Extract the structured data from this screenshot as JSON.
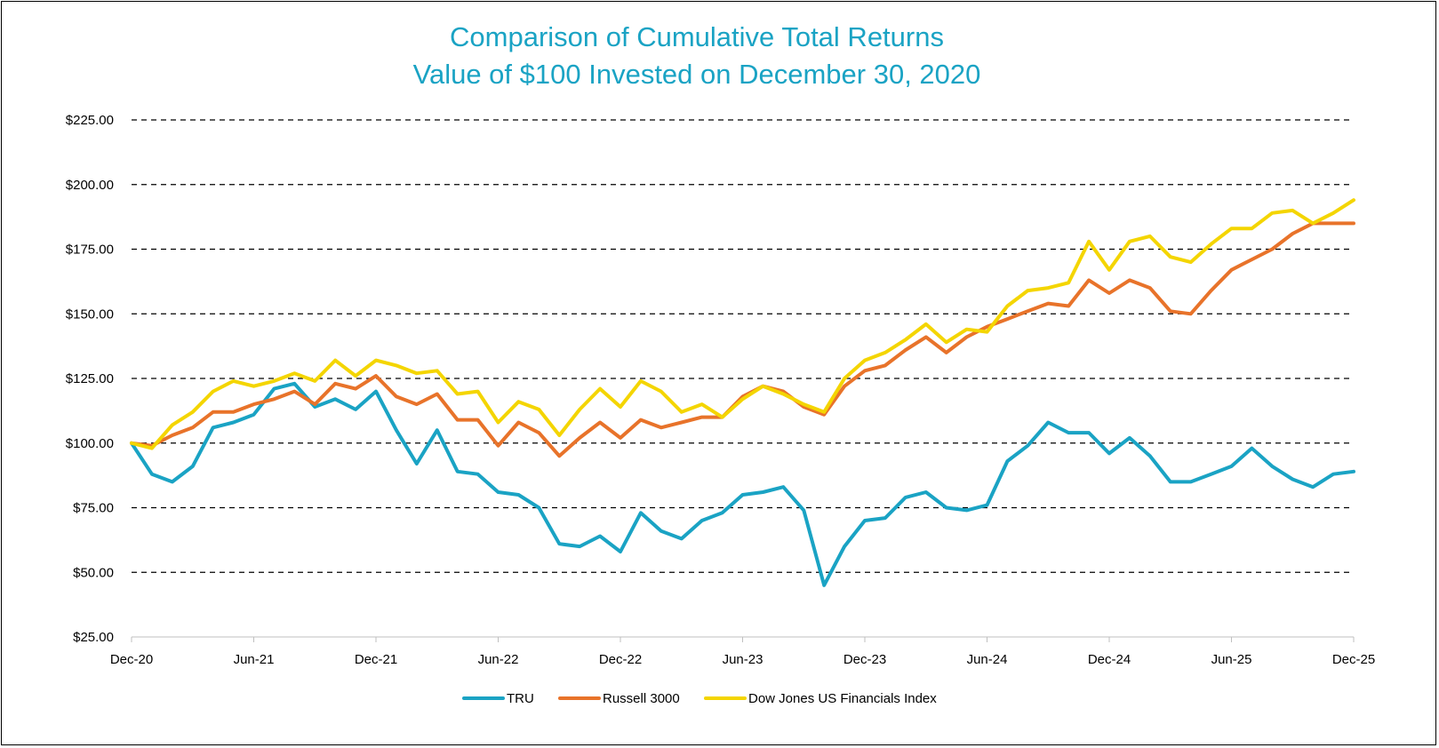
{
  "chart_data": {
    "type": "line",
    "title": "Comparison of Cumulative Total Returns",
    "subtitle": "Value of $100 Invested on December 30, 2020",
    "xlabel": "",
    "ylabel": "",
    "ylim": [
      25,
      225
    ],
    "yticks": [
      25,
      50,
      75,
      100,
      125,
      150,
      175,
      200,
      225
    ],
    "ytick_labels": [
      "$25.00",
      "$50.00",
      "$75.00",
      "$100.00",
      "$125.00",
      "$150.00",
      "$175.00",
      "$200.00",
      "$225.00"
    ],
    "xtick_labels": [
      "Dec-20",
      "Jun-21",
      "Dec-21",
      "Jun-22",
      "Dec-22",
      "Jun-23",
      "Dec-23",
      "Jun-24",
      "Dec-24",
      "Jun-25",
      "Dec-25"
    ],
    "xtick_months": [
      0,
      6,
      12,
      18,
      24,
      30,
      36,
      42,
      48,
      54,
      60
    ],
    "x_unit": "months since Dec-20",
    "grid": "horizontal dashed",
    "legend_position": "bottom",
    "series": [
      {
        "name": "TRU",
        "color": "#1aa3c4",
        "values": [
          100,
          88,
          85,
          91,
          106,
          108,
          111,
          121,
          123,
          114,
          117,
          113,
          120,
          105,
          92,
          105,
          89,
          88,
          81,
          80,
          75,
          61,
          60,
          64,
          58,
          73,
          66,
          63,
          70,
          73,
          80,
          81,
          83,
          74,
          45,
          60,
          70,
          71,
          79,
          81,
          75,
          74,
          76,
          93,
          99,
          108,
          104,
          104,
          96,
          102,
          95,
          85,
          85,
          88,
          91,
          98,
          91,
          86,
          83,
          88,
          89
        ]
      },
      {
        "name": "Russell 3000",
        "color": "#e8732a",
        "values": [
          100,
          99,
          103,
          106,
          112,
          112,
          115,
          117,
          120,
          115,
          123,
          121,
          126,
          118,
          115,
          119,
          109,
          109,
          99,
          108,
          104,
          95,
          102,
          108,
          102,
          109,
          106,
          108,
          110,
          110,
          118,
          122,
          120,
          114,
          111,
          122,
          128,
          130,
          136,
          141,
          135,
          141,
          145,
          148,
          151,
          154,
          153,
          163,
          158,
          163,
          160,
          151,
          150,
          159,
          167,
          171,
          175,
          181,
          185,
          185,
          185
        ]
      },
      {
        "name": "Dow Jones US Financials Index",
        "color": "#f4d500",
        "values": [
          100,
          98,
          107,
          112,
          120,
          124,
          122,
          124,
          127,
          124,
          132,
          126,
          132,
          130,
          127,
          128,
          119,
          120,
          108,
          116,
          113,
          103,
          113,
          121,
          114,
          124,
          120,
          112,
          115,
          110,
          117,
          122,
          119,
          115,
          112,
          125,
          132,
          135,
          140,
          146,
          139,
          144,
          143,
          153,
          159,
          160,
          162,
          178,
          167,
          178,
          180,
          172,
          170,
          177,
          183,
          183,
          189,
          190,
          185,
          189,
          194
        ]
      }
    ]
  }
}
